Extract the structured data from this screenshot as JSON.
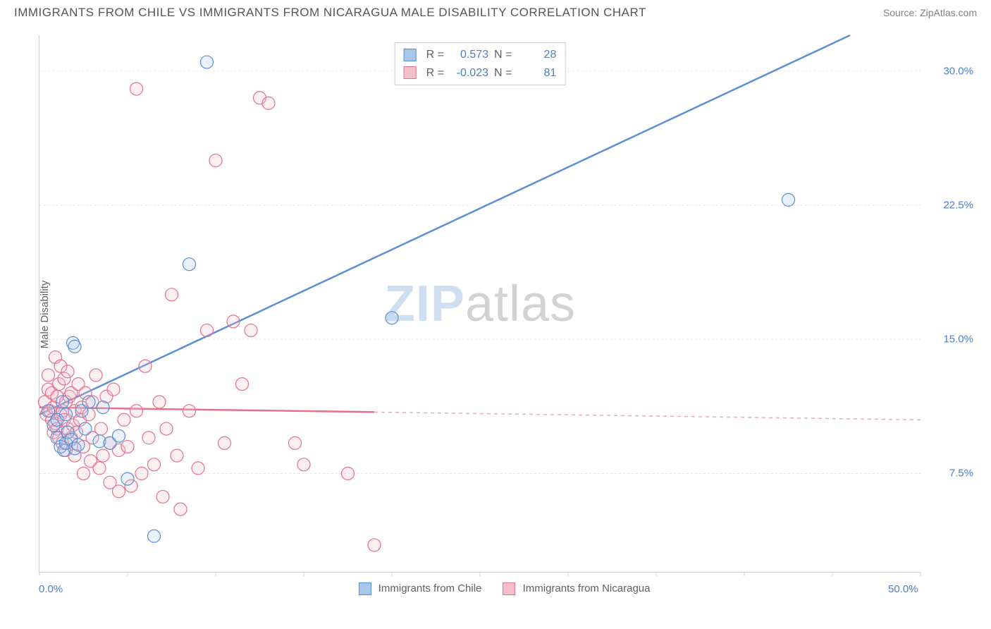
{
  "header": {
    "title": "IMMIGRANTS FROM CHILE VS IMMIGRANTS FROM NICARAGUA MALE DISABILITY CORRELATION CHART",
    "source": "Source: ZipAtlas.com"
  },
  "chart": {
    "type": "scatter",
    "ylabel": "Male Disability",
    "watermark_zip": "ZIP",
    "watermark_atlas": "atlas",
    "background_color": "#ffffff",
    "grid_color": "#e5e5e5",
    "axis_color": "#d0d0d0",
    "text_color": "#606060",
    "value_color": "#4a7fc9",
    "xlim": [
      0,
      50
    ],
    "ylim": [
      2,
      32
    ],
    "xticks": [
      0,
      5,
      10,
      15,
      20,
      25,
      30,
      35,
      40,
      45,
      50
    ],
    "xtick_labels_shown": {
      "0": "0.0%",
      "50": "50.0%"
    },
    "yticks": [
      7.5,
      15.0,
      22.5,
      30.0
    ],
    "ytick_labels": [
      "7.5%",
      "15.0%",
      "22.5%",
      "30.0%"
    ],
    "marker_radius": 9,
    "marker_fill_opacity": 0.25,
    "series": [
      {
        "name": "Immigrants from Chile",
        "color": "#5b8fd4",
        "fill": "#a9c7eb",
        "R": "0.573",
        "N": "28",
        "trend": {
          "x1": 0,
          "y1": 10.8,
          "x2": 46,
          "y2": 32,
          "solid_until_x": 46
        },
        "points": [
          [
            0.5,
            11.0
          ],
          [
            0.8,
            10.2
          ],
          [
            1.0,
            9.5
          ],
          [
            1.0,
            10.5
          ],
          [
            1.2,
            9.0
          ],
          [
            1.3,
            11.5
          ],
          [
            1.4,
            8.8
          ],
          [
            1.5,
            9.2
          ],
          [
            1.5,
            10.8
          ],
          [
            1.6,
            9.8
          ],
          [
            1.8,
            9.4
          ],
          [
            1.9,
            14.8
          ],
          [
            2.0,
            8.9
          ],
          [
            2.0,
            14.6
          ],
          [
            2.2,
            9.1
          ],
          [
            2.4,
            11.0
          ],
          [
            2.6,
            10.0
          ],
          [
            2.8,
            11.5
          ],
          [
            3.4,
            9.3
          ],
          [
            3.6,
            11.2
          ],
          [
            4.0,
            9.2
          ],
          [
            4.5,
            9.6
          ],
          [
            5.0,
            7.2
          ],
          [
            6.5,
            4.0
          ],
          [
            8.5,
            19.2
          ],
          [
            9.5,
            30.5
          ],
          [
            20.0,
            16.2
          ],
          [
            42.5,
            22.8
          ]
        ]
      },
      {
        "name": "Immigrants from Nicaragua",
        "color": "#e4718c",
        "fill": "#f4c0cc",
        "R": "-0.023",
        "N": "81",
        "trend": {
          "x1": 0,
          "y1": 11.2,
          "x2": 50,
          "y2": 10.5,
          "solid_until_x": 19
        },
        "points": [
          [
            0.3,
            11.5
          ],
          [
            0.4,
            10.8
          ],
          [
            0.5,
            12.2
          ],
          [
            0.5,
            13.0
          ],
          [
            0.6,
            11.0
          ],
          [
            0.7,
            10.5
          ],
          [
            0.7,
            12.0
          ],
          [
            0.8,
            9.8
          ],
          [
            0.8,
            11.2
          ],
          [
            0.9,
            10.3
          ],
          [
            0.9,
            14.0
          ],
          [
            1.0,
            10.0
          ],
          [
            1.0,
            11.8
          ],
          [
            1.1,
            9.5
          ],
          [
            1.1,
            12.5
          ],
          [
            1.2,
            10.8
          ],
          [
            1.2,
            13.5
          ],
          [
            1.3,
            11.0
          ],
          [
            1.3,
            9.2
          ],
          [
            1.4,
            10.5
          ],
          [
            1.4,
            12.8
          ],
          [
            1.5,
            11.5
          ],
          [
            1.5,
            8.8
          ],
          [
            1.6,
            10.0
          ],
          [
            1.6,
            13.2
          ],
          [
            1.7,
            11.8
          ],
          [
            1.8,
            9.5
          ],
          [
            1.8,
            12.0
          ],
          [
            1.9,
            10.2
          ],
          [
            2.0,
            11.0
          ],
          [
            2.0,
            8.5
          ],
          [
            2.1,
            9.8
          ],
          [
            2.2,
            12.5
          ],
          [
            2.3,
            10.5
          ],
          [
            2.4,
            11.2
          ],
          [
            2.5,
            9.0
          ],
          [
            2.5,
            7.5
          ],
          [
            2.6,
            12.0
          ],
          [
            2.8,
            10.8
          ],
          [
            2.9,
            8.2
          ],
          [
            3.0,
            11.5
          ],
          [
            3.0,
            9.5
          ],
          [
            3.2,
            13.0
          ],
          [
            3.4,
            7.8
          ],
          [
            3.5,
            10.0
          ],
          [
            3.6,
            8.5
          ],
          [
            3.8,
            11.8
          ],
          [
            4.0,
            9.2
          ],
          [
            4.0,
            7.0
          ],
          [
            4.2,
            12.2
          ],
          [
            4.5,
            8.8
          ],
          [
            4.5,
            6.5
          ],
          [
            4.8,
            10.5
          ],
          [
            5.0,
            9.0
          ],
          [
            5.2,
            6.8
          ],
          [
            5.5,
            11.0
          ],
          [
            5.5,
            29.0
          ],
          [
            5.8,
            7.5
          ],
          [
            6.0,
            13.5
          ],
          [
            6.2,
            9.5
          ],
          [
            6.5,
            8.0
          ],
          [
            6.8,
            11.5
          ],
          [
            7.0,
            6.2
          ],
          [
            7.2,
            10.0
          ],
          [
            7.5,
            17.5
          ],
          [
            7.8,
            8.5
          ],
          [
            8.0,
            5.5
          ],
          [
            8.5,
            11.0
          ],
          [
            9.0,
            7.8
          ],
          [
            9.5,
            15.5
          ],
          [
            10.0,
            25.0
          ],
          [
            10.5,
            9.2
          ],
          [
            11.0,
            16.0
          ],
          [
            11.5,
            12.5
          ],
          [
            12.0,
            15.5
          ],
          [
            12.5,
            28.5
          ],
          [
            13.0,
            28.2
          ],
          [
            14.5,
            9.2
          ],
          [
            15.0,
            8.0
          ],
          [
            17.5,
            7.5
          ],
          [
            19.0,
            3.5
          ]
        ]
      }
    ],
    "legend": {
      "series1_label": "Immigrants from Chile",
      "series2_label": "Immigrants from Nicaragua",
      "r_label": "R =",
      "n_label": "N ="
    }
  }
}
